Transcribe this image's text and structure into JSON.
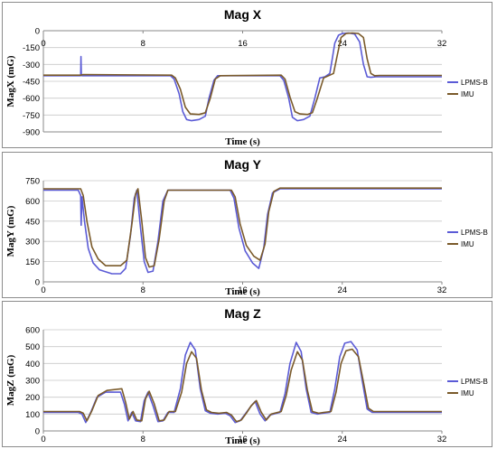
{
  "legend_colors": {
    "LPMS-B": "#5b5bd6",
    "IMU": "#7a5a2a"
  },
  "chart_data": [
    {
      "type": "line",
      "title": "Mag X",
      "xlabel": "Time (s)",
      "ylabel": "MagX (mG)",
      "xlim": [
        0,
        32
      ],
      "ylim": [
        -900,
        0
      ],
      "xticks": [
        "0",
        "8",
        "16",
        "24",
        "32"
      ],
      "yticks": [
        "0",
        "-150",
        "-300",
        "-450",
        "-600",
        "-750",
        "-900"
      ],
      "grid": "horizontal",
      "legend_position": "right",
      "series": [
        {
          "name": "LPMS-B",
          "color": "#5b5bd6",
          "x": [
            0,
            3.0,
            3.02,
            3.05,
            3.1,
            10.2,
            10.5,
            10.9,
            11.2,
            11.5,
            11.9,
            12.5,
            13.0,
            13.3,
            13.7,
            14.0,
            19.0,
            19.3,
            19.7,
            20.0,
            20.4,
            20.9,
            21.4,
            21.8,
            22.2,
            22.6,
            23.0,
            23.2,
            23.4,
            23.7,
            24.0,
            24.5,
            25.0,
            25.4,
            25.7,
            26.0,
            26.3,
            26.7,
            32
          ],
          "y": [
            -400,
            -400,
            -230,
            -390,
            -400,
            -400,
            -430,
            -560,
            -720,
            -790,
            -800,
            -790,
            -760,
            -600,
            -440,
            -400,
            -400,
            -440,
            -600,
            -770,
            -800,
            -790,
            -760,
            -600,
            -420,
            -410,
            -380,
            -250,
            -110,
            -40,
            -25,
            -20,
            -30,
            -100,
            -300,
            -410,
            -415,
            -410,
            -410
          ]
        },
        {
          "name": "IMU",
          "color": "#7a5a2a",
          "x": [
            0,
            3.0,
            3.2,
            10.3,
            10.6,
            11.0,
            11.4,
            11.8,
            12.5,
            13.0,
            13.4,
            13.8,
            14.2,
            19.1,
            19.4,
            19.8,
            20.2,
            20.6,
            21.2,
            21.6,
            22.0,
            22.5,
            22.9,
            23.3,
            23.6,
            23.9,
            24.3,
            24.8,
            25.3,
            25.7,
            26.0,
            26.3,
            26.6,
            27.0,
            32
          ],
          "y": [
            -395,
            -395,
            -390,
            -395,
            -420,
            -520,
            -680,
            -740,
            -745,
            -730,
            -600,
            -430,
            -400,
            -395,
            -430,
            -590,
            -720,
            -740,
            -745,
            -730,
            -600,
            -420,
            -400,
            -380,
            -220,
            -60,
            -25,
            -20,
            -25,
            -60,
            -250,
            -380,
            -400,
            -398,
            -398
          ]
        }
      ]
    },
    {
      "type": "line",
      "title": "Mag Y",
      "xlabel": "Time (s)",
      "ylabel": "MagY (mG)",
      "xlim": [
        0,
        32
      ],
      "ylim": [
        0,
        750
      ],
      "xticks": [
        "0",
        "8",
        "16",
        "24",
        "32"
      ],
      "yticks": [
        "750",
        "600",
        "450",
        "300",
        "150",
        "0"
      ],
      "grid": "horizontal",
      "legend_position": "right",
      "series": [
        {
          "name": "LPMS-B",
          "color": "#5b5bd6",
          "x": [
            0,
            2.8,
            3.0,
            3.03,
            3.1,
            3.3,
            3.6,
            4.0,
            4.5,
            5.5,
            6.2,
            6.6,
            7.0,
            7.3,
            7.5,
            7.8,
            8.1,
            8.4,
            8.8,
            9.2,
            9.6,
            10.0,
            15.0,
            15.3,
            15.7,
            16.2,
            16.8,
            17.3,
            17.7,
            18.0,
            18.4,
            19.0,
            32
          ],
          "y": [
            680,
            680,
            640,
            420,
            630,
            450,
            250,
            140,
            90,
            60,
            60,
            100,
            350,
            620,
            680,
            400,
            150,
            70,
            80,
            300,
            600,
            680,
            680,
            620,
            400,
            230,
            140,
            100,
            250,
            500,
            660,
            690,
            690
          ]
        },
        {
          "name": "IMU",
          "color": "#7a5a2a",
          "x": [
            0,
            3.0,
            3.2,
            3.5,
            3.9,
            4.4,
            5.0,
            6.2,
            6.7,
            7.1,
            7.4,
            7.6,
            7.9,
            8.2,
            8.5,
            8.9,
            9.3,
            9.7,
            10.0,
            15.1,
            15.4,
            15.8,
            16.3,
            16.9,
            17.4,
            17.8,
            18.1,
            18.5,
            19.0,
            32
          ],
          "y": [
            690,
            690,
            640,
            450,
            260,
            170,
            120,
            120,
            160,
            420,
            650,
            690,
            450,
            180,
            110,
            120,
            320,
            600,
            680,
            680,
            630,
            430,
            270,
            190,
            160,
            280,
            520,
            670,
            695,
            695
          ]
        }
      ]
    },
    {
      "type": "line",
      "title": "Mag Z",
      "xlabel": "Time (s)",
      "ylabel": "MagZ (mG)",
      "xlim": [
        0,
        32
      ],
      "ylim": [
        0,
        600
      ],
      "xticks": [
        "0",
        "8",
        "16",
        "24",
        "32"
      ],
      "yticks": [
        "600",
        "500",
        "400",
        "300",
        "200",
        "100",
        "0"
      ],
      "grid": "horizontal",
      "legend_position": "right",
      "series": [
        {
          "name": "LPMS-B",
          "color": "#5b5bd6",
          "x": [
            0,
            2.8,
            3.1,
            3.4,
            3.8,
            4.3,
            5.0,
            6.2,
            6.5,
            6.8,
            7.1,
            7.4,
            7.8,
            8.1,
            8.4,
            8.8,
            9.2,
            9.6,
            10.0,
            10.5,
            11.0,
            11.4,
            11.8,
            12.2,
            12.6,
            13.0,
            13.4,
            14.0,
            14.6,
            15.0,
            15.4,
            15.8,
            16.2,
            16.6,
            17.0,
            17.4,
            17.8,
            18.2,
            19.0,
            19.4,
            19.8,
            20.3,
            20.7,
            21.1,
            21.5,
            22.0,
            22.4,
            23.0,
            23.4,
            23.8,
            24.2,
            24.7,
            25.2,
            25.6,
            26.0,
            26.4,
            32
          ],
          "y": [
            110,
            110,
            100,
            50,
            110,
            200,
            230,
            230,
            160,
            60,
            110,
            60,
            55,
            180,
            230,
            150,
            55,
            60,
            110,
            110,
            250,
            450,
            525,
            480,
            250,
            120,
            105,
            100,
            105,
            90,
            50,
            60,
            100,
            140,
            175,
            100,
            60,
            95,
            110,
            220,
            400,
            525,
            470,
            250,
            110,
            100,
            105,
            110,
            250,
            440,
            520,
            530,
            480,
            300,
            130,
            110,
            110
          ]
        },
        {
          "name": "IMU",
          "color": "#7a5a2a",
          "x": [
            0,
            2.9,
            3.2,
            3.5,
            3.9,
            4.4,
            5.1,
            6.3,
            6.6,
            6.9,
            7.2,
            7.5,
            7.9,
            8.2,
            8.5,
            8.9,
            9.3,
            9.7,
            10.1,
            10.6,
            11.1,
            11.5,
            11.9,
            12.3,
            12.7,
            13.1,
            13.5,
            14.1,
            14.7,
            15.1,
            15.5,
            15.9,
            16.3,
            16.7,
            17.1,
            17.5,
            17.9,
            18.3,
            19.1,
            19.5,
            19.9,
            20.4,
            20.8,
            21.2,
            21.6,
            22.1,
            22.5,
            23.1,
            23.5,
            23.9,
            24.3,
            24.8,
            25.3,
            25.7,
            26.1,
            26.5,
            32
          ],
          "y": [
            115,
            115,
            105,
            60,
            120,
            210,
            240,
            250,
            170,
            70,
            115,
            65,
            60,
            190,
            235,
            160,
            60,
            65,
            115,
            115,
            230,
            400,
            470,
            430,
            240,
            125,
            110,
            105,
            110,
            95,
            55,
            65,
            105,
            150,
            180,
            110,
            65,
            100,
            115,
            210,
            360,
            470,
            420,
            240,
            115,
            105,
            110,
            115,
            230,
            400,
            475,
            485,
            440,
            290,
            135,
            115,
            115
          ]
        }
      ]
    }
  ]
}
